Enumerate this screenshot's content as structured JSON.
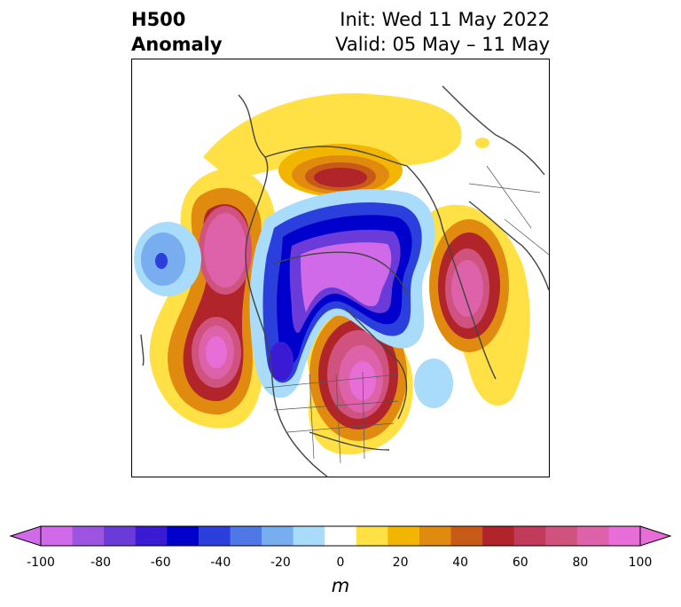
{
  "header": {
    "title_line1": "H500",
    "title_line2": "Anomaly",
    "init_text": "Init: Wed 11 May 2022",
    "valid_text": "Valid: 05 May – 11 May"
  },
  "colorbar": {
    "ticks": [
      "-100",
      "-80",
      "-60",
      "-40",
      "-20",
      "0",
      "20",
      "40",
      "60",
      "80",
      "100"
    ],
    "unit": "m",
    "colors": [
      "#d16ae8",
      "#9d55e1",
      "#6a3bd9",
      "#3a1ad3",
      "#0000cc",
      "#2b3fdc",
      "#4f78e6",
      "#78aef0",
      "#a8dcfa",
      "#ffffff",
      "#ffe045",
      "#f2b600",
      "#e08b10",
      "#c85a18",
      "#b0242a",
      "#c23a5a",
      "#d0527e",
      "#dd62aa",
      "#e66ed6"
    ]
  },
  "map": {
    "region": "Northern Hemisphere polar view",
    "positive_anomaly_color": "#b0242a",
    "negative_anomaly_color": "#0000cc"
  }
}
